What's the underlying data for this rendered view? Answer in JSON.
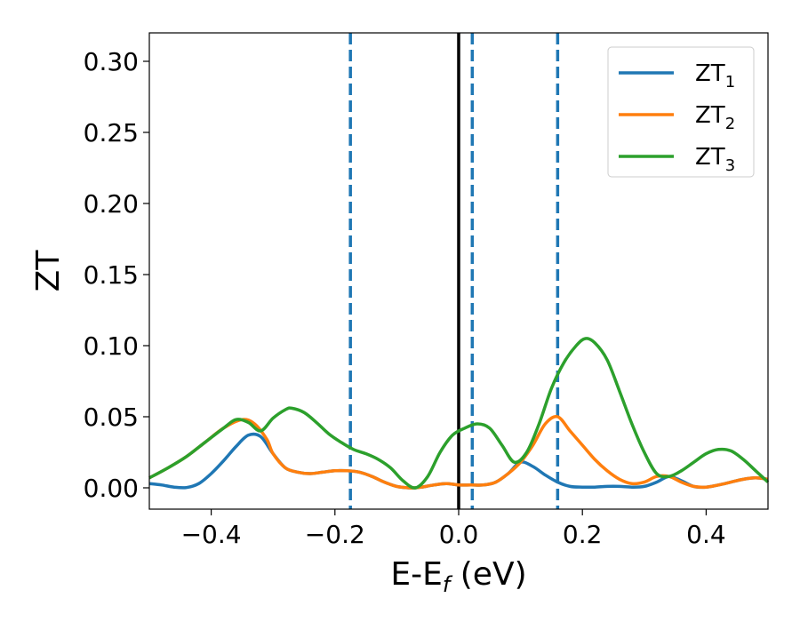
{
  "chart_data": {
    "type": "line",
    "xlabel": "E-E",
    "xlabel_sub": "f",
    "xlabel_unit": " (eV)",
    "ylabel": "ZT",
    "xlim": [
      -0.5,
      0.5
    ],
    "ylim": [
      -0.015,
      0.32
    ],
    "xticks": [
      -0.4,
      -0.2,
      0.0,
      0.2,
      0.4
    ],
    "xtick_labels": [
      "−0.4",
      "−0.2",
      "0.0",
      "0.2",
      "0.4"
    ],
    "yticks": [
      0.0,
      0.05,
      0.1,
      0.15,
      0.2,
      0.25,
      0.3
    ],
    "ytick_labels": [
      "0.00",
      "0.05",
      "0.10",
      "0.15",
      "0.20",
      "0.25",
      "0.30"
    ],
    "grid": false,
    "legend_position": "top-right",
    "vertical_lines": [
      {
        "x": 0.0,
        "style": "solid",
        "color": "#000000"
      },
      {
        "x": -0.175,
        "style": "dashed",
        "color": "#1f77b4"
      },
      {
        "x": 0.022,
        "style": "dashed",
        "color": "#1f77b4"
      },
      {
        "x": 0.16,
        "style": "dashed",
        "color": "#1f77b4"
      }
    ],
    "series": [
      {
        "name": "ZT",
        "name_sub": "1",
        "color": "#1f77b4",
        "x": [
          -0.5,
          -0.48,
          -0.46,
          -0.44,
          -0.42,
          -0.4,
          -0.38,
          -0.36,
          -0.34,
          -0.32,
          -0.3,
          -0.28,
          -0.26,
          -0.24,
          -0.22,
          -0.2,
          -0.18,
          -0.16,
          -0.14,
          -0.12,
          -0.1,
          -0.08,
          -0.07,
          -0.06,
          -0.04,
          -0.02,
          0.0,
          0.02,
          0.04,
          0.06,
          0.08,
          0.1,
          0.12,
          0.14,
          0.16,
          0.18,
          0.2,
          0.22,
          0.24,
          0.26,
          0.28,
          0.3,
          0.32,
          0.34,
          0.36,
          0.38,
          0.4,
          0.42,
          0.44,
          0.46,
          0.48,
          0.5
        ],
        "y": [
          0.003,
          0.002,
          0.0005,
          0.0002,
          0.003,
          0.01,
          0.019,
          0.029,
          0.037,
          0.036,
          0.024,
          0.014,
          0.011,
          0.01,
          0.011,
          0.012,
          0.012,
          0.011,
          0.008,
          0.004,
          0.001,
          0.0,
          0.0,
          0.0005,
          0.002,
          0.003,
          0.002,
          0.002,
          0.002,
          0.004,
          0.01,
          0.018,
          0.015,
          0.009,
          0.004,
          0.001,
          0.0005,
          0.0005,
          0.001,
          0.001,
          0.0005,
          0.001,
          0.004,
          0.008,
          0.005,
          0.001,
          0.0005,
          0.002,
          0.004,
          0.006,
          0.007,
          0.006
        ]
      },
      {
        "name": "ZT",
        "name_sub": "2",
        "color": "#ff7f0e",
        "x": [
          -0.5,
          -0.47,
          -0.44,
          -0.41,
          -0.38,
          -0.35,
          -0.33,
          -0.31,
          -0.3,
          -0.28,
          -0.26,
          -0.24,
          -0.22,
          -0.2,
          -0.18,
          -0.16,
          -0.14,
          -0.12,
          -0.1,
          -0.08,
          -0.07,
          -0.06,
          -0.04,
          -0.02,
          0.0,
          0.02,
          0.04,
          0.06,
          0.08,
          0.1,
          0.12,
          0.14,
          0.16,
          0.18,
          0.2,
          0.22,
          0.24,
          0.26,
          0.28,
          0.3,
          0.32,
          0.34,
          0.36,
          0.38,
          0.4,
          0.42,
          0.44,
          0.46,
          0.48,
          0.5
        ],
        "y": [
          0.007,
          0.014,
          0.022,
          0.032,
          0.042,
          0.048,
          0.045,
          0.034,
          0.024,
          0.014,
          0.011,
          0.01,
          0.011,
          0.012,
          0.012,
          0.011,
          0.008,
          0.004,
          0.001,
          0.0,
          0.0,
          0.0005,
          0.002,
          0.003,
          0.002,
          0.002,
          0.002,
          0.004,
          0.01,
          0.018,
          0.03,
          0.045,
          0.05,
          0.04,
          0.03,
          0.02,
          0.012,
          0.006,
          0.003,
          0.004,
          0.008,
          0.008,
          0.004,
          0.001,
          0.0005,
          0.002,
          0.004,
          0.006,
          0.007,
          0.006
        ]
      },
      {
        "name": "ZT",
        "name_sub": "3",
        "color": "#2ca02c",
        "x": [
          -0.5,
          -0.47,
          -0.44,
          -0.41,
          -0.38,
          -0.36,
          -0.34,
          -0.32,
          -0.3,
          -0.28,
          -0.27,
          -0.25,
          -0.23,
          -0.21,
          -0.19,
          -0.17,
          -0.15,
          -0.13,
          -0.11,
          -0.09,
          -0.07,
          -0.05,
          -0.03,
          -0.01,
          0.01,
          0.03,
          0.05,
          0.07,
          0.09,
          0.11,
          0.13,
          0.15,
          0.17,
          0.19,
          0.205,
          0.22,
          0.24,
          0.26,
          0.28,
          0.3,
          0.32,
          0.34,
          0.36,
          0.38,
          0.4,
          0.42,
          0.44,
          0.46,
          0.48,
          0.5
        ],
        "y": [
          0.007,
          0.014,
          0.022,
          0.032,
          0.042,
          0.048,
          0.046,
          0.04,
          0.049,
          0.055,
          0.056,
          0.053,
          0.046,
          0.038,
          0.032,
          0.027,
          0.024,
          0.02,
          0.014,
          0.005,
          0.0,
          0.008,
          0.025,
          0.037,
          0.042,
          0.045,
          0.042,
          0.03,
          0.018,
          0.025,
          0.045,
          0.07,
          0.088,
          0.1,
          0.105,
          0.102,
          0.09,
          0.068,
          0.045,
          0.025,
          0.01,
          0.008,
          0.012,
          0.018,
          0.024,
          0.027,
          0.026,
          0.02,
          0.012,
          0.004
        ]
      }
    ]
  }
}
